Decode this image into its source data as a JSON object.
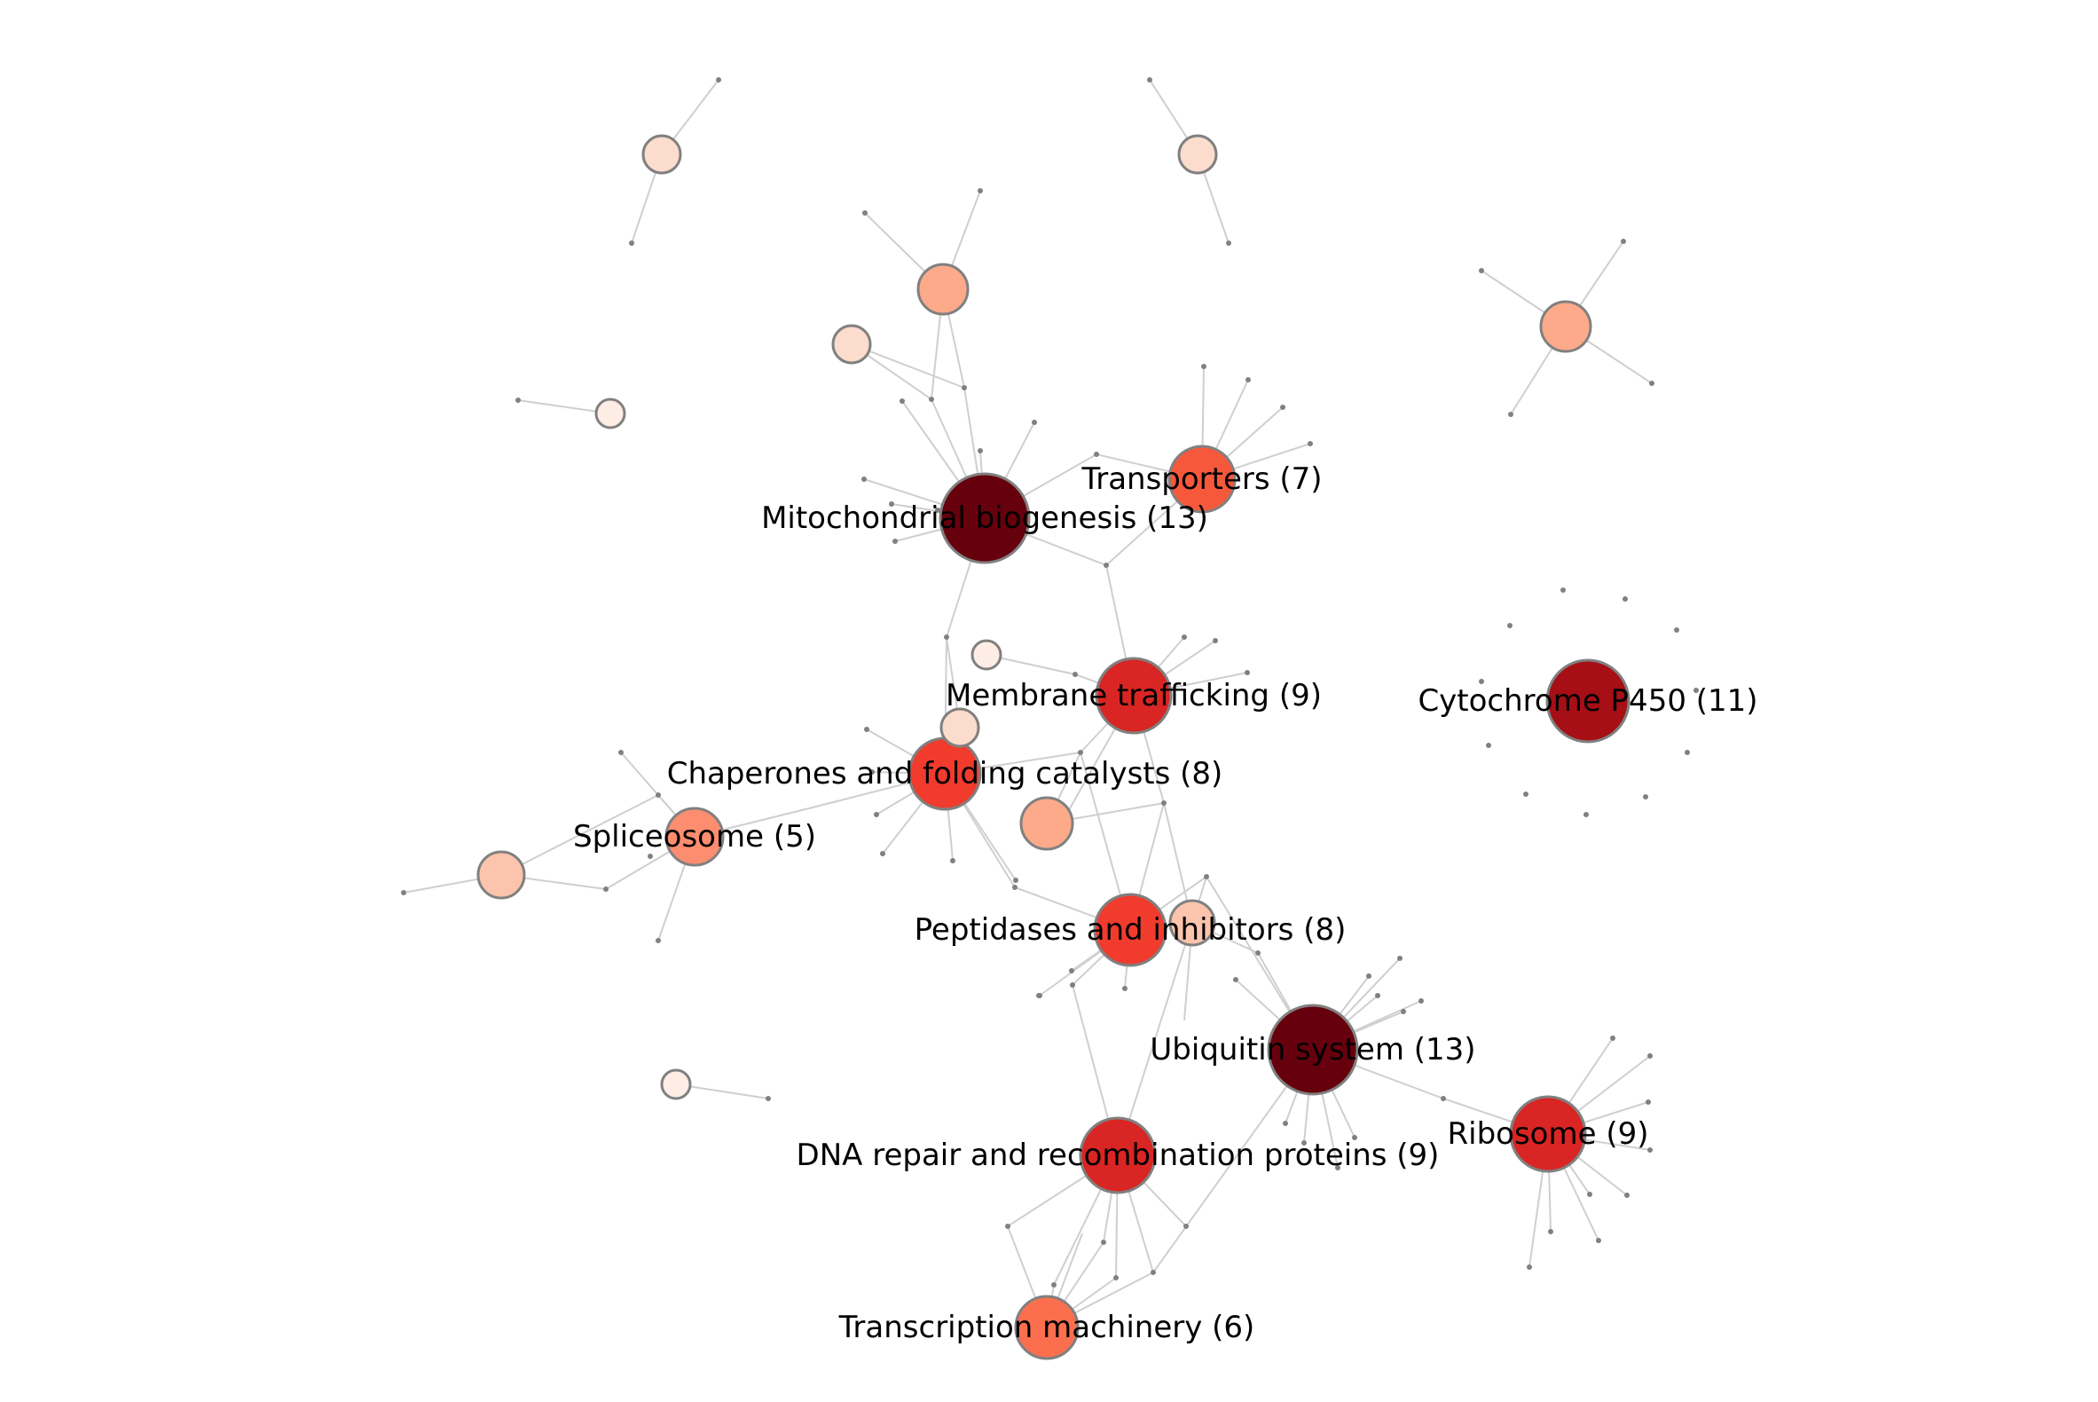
{
  "colors": {
    "edge": "#d4d4d4",
    "gene": "#7f7f7f",
    "node_stroke": "#7f7f7f"
  },
  "categories": [
    {
      "id": "mito",
      "label": "Mitochondrial biogenesis (13)",
      "color": "#67000d"
    },
    {
      "id": "ubiq",
      "label": "Ubiquitin system (13)",
      "color": "#67000d"
    },
    {
      "id": "cyp",
      "label": "Cytochrome P450 (11)",
      "color": "#a50f15"
    },
    {
      "id": "memb",
      "label": "Membrane trafficking (9)",
      "color": "#d92523"
    },
    {
      "id": "ribo",
      "label": "Ribosome (9)",
      "color": "#d92523"
    },
    {
      "id": "dna",
      "label": "DNA repair and recombination proteins (9)",
      "color": "#d92523"
    },
    {
      "id": "chap",
      "label": "Chaperones and folding catalysts (8)",
      "color": "#f03b2d"
    },
    {
      "id": "pept",
      "label": "Peptidases and inhibitors (8)",
      "color": "#f03b2d"
    },
    {
      "id": "trans",
      "label": "Transporters (7)",
      "color": "#f6583c"
    },
    {
      "id": "txn",
      "label": "Transcription machinery (6)",
      "color": "#fb6f4e"
    },
    {
      "id": "splice",
      "label": "Spliceosome (5)",
      "color": "#fc8d6e"
    },
    {
      "id": "u1",
      "label": "",
      "color": "#fdaa8a"
    },
    {
      "id": "u2",
      "label": "",
      "color": "#fdaa8a"
    },
    {
      "id": "u3",
      "label": "",
      "color": "#fdaa8a"
    },
    {
      "id": "u4",
      "label": "",
      "color": "#fcc4ad"
    },
    {
      "id": "u5",
      "label": "",
      "color": "#fcc4ad"
    },
    {
      "id": "u6",
      "label": "",
      "color": "#fcdccc"
    },
    {
      "id": "u7",
      "label": "",
      "color": "#fcdccc"
    },
    {
      "id": "u8",
      "label": "",
      "color": "#fcdccc"
    },
    {
      "id": "u9",
      "label": "",
      "color": "#fcdccc"
    },
    {
      "id": "u10",
      "label": "",
      "color": "#feede5"
    },
    {
      "id": "u11",
      "label": "",
      "color": "#feede5"
    },
    {
      "id": "u12",
      "label": "",
      "color": "#feede5"
    }
  ]
}
